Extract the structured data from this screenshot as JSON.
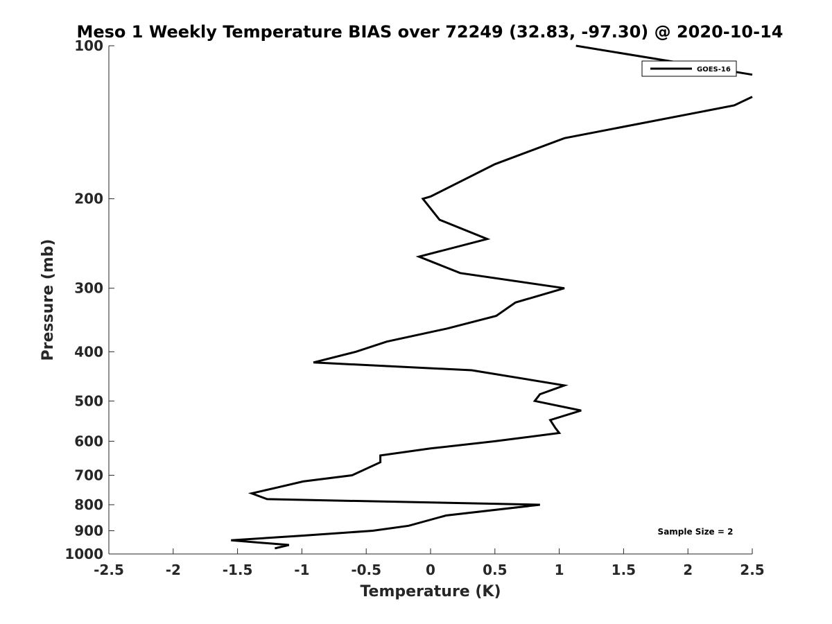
{
  "chart_data": {
    "type": "line",
    "title": "Meso 1 Weekly Temperature BIAS over 72249 (32.83, -97.30) @ 2020-10-14",
    "xlabel": "Temperature (K)",
    "ylabel": "Pressure (mb)",
    "xlim": [
      -2.5,
      2.5
    ],
    "ylim": [
      100,
      1000
    ],
    "y_scale": "log",
    "y_reversed": true,
    "grid": false,
    "legend_position": "top-right",
    "x_ticks": [
      -2.5,
      -2,
      -1.5,
      -1,
      -0.5,
      0,
      0.5,
      1,
      1.5,
      2,
      2.5
    ],
    "x_tick_labels": [
      "-2.5",
      "-2",
      "-1.5",
      "-1",
      "-0.5",
      "0",
      "0.5",
      "1",
      "1.5",
      "2",
      "2.5"
    ],
    "y_ticks": [
      100,
      200,
      300,
      400,
      500,
      600,
      700,
      800,
      900,
      1000
    ],
    "y_tick_labels": [
      "100",
      "200",
      "300",
      "400",
      "500",
      "600",
      "700",
      "800",
      "900",
      "1000"
    ],
    "annotation": "Sample Size = 2",
    "color": "#000000",
    "series": [
      {
        "name": "GOES-16",
        "segments": [
          [
            [
              1.13,
              100
            ],
            [
              2.5,
              114
            ]
          ],
          [
            [
              2.5,
              126
            ],
            [
              2.36,
              131
            ],
            [
              1.04,
              152
            ],
            [
              0.5,
              171
            ],
            [
              0.0,
              198
            ],
            [
              -0.06,
              200
            ],
            [
              0.07,
              220
            ],
            [
              0.44,
              240
            ],
            [
              -0.09,
              260
            ],
            [
              0.23,
              280
            ],
            [
              1.04,
              300
            ],
            [
              0.66,
              320
            ],
            [
              0.51,
              340
            ],
            [
              0.13,
              360
            ],
            [
              -0.34,
              382
            ],
            [
              -0.58,
              400
            ],
            [
              -0.91,
              420
            ],
            [
              0.32,
              435
            ],
            [
              1.04,
              466
            ],
            [
              0.85,
              485
            ],
            [
              0.81,
              500
            ],
            [
              1.17,
              522
            ],
            [
              0.93,
              545
            ],
            [
              0.97,
              565
            ],
            [
              1.0,
              578
            ],
            [
              0.5,
              600
            ],
            [
              0.0,
              620
            ],
            [
              -0.39,
              640
            ],
            [
              -0.39,
              660
            ],
            [
              -0.61,
              700
            ],
            [
              -0.99,
              720
            ],
            [
              -1.19,
              740
            ],
            [
              -1.39,
              760
            ],
            [
              -1.27,
              780
            ],
            [
              0.85,
              800
            ],
            [
              0.12,
              840
            ],
            [
              -0.17,
              880
            ],
            [
              -0.45,
              900
            ],
            [
              -0.99,
              920
            ],
            [
              -1.55,
              940
            ],
            [
              -1.1,
              960
            ],
            [
              -1.21,
              975
            ]
          ]
        ]
      }
    ]
  }
}
